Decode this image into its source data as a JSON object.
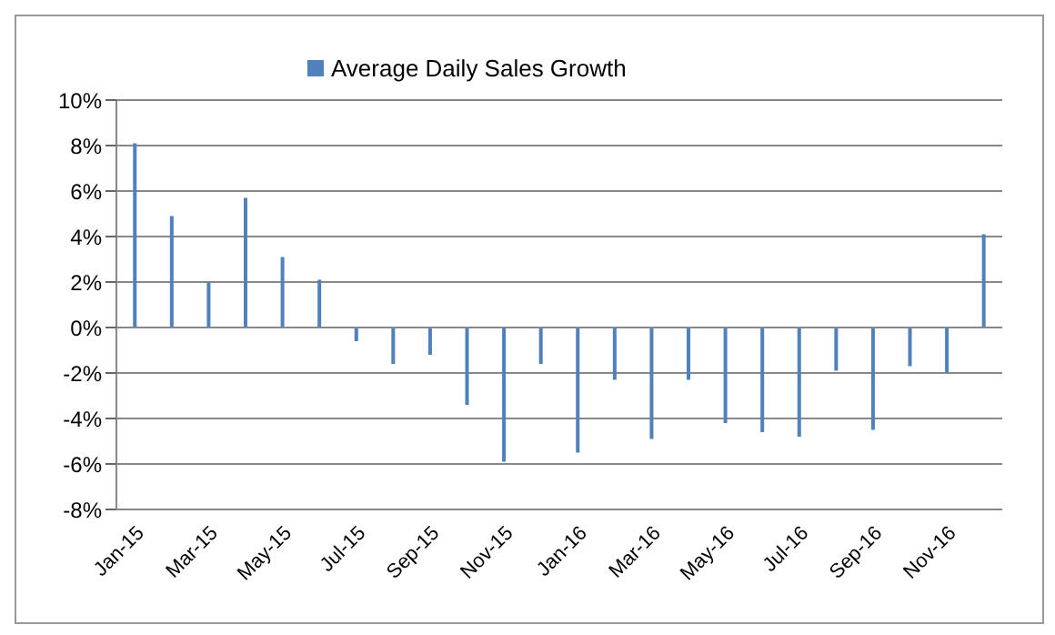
{
  "chart_data": {
    "type": "bar",
    "categories": [
      "Jan-15",
      null,
      "Mar-15",
      null,
      "May-15",
      null,
      "Jul-15",
      null,
      "Sep-15",
      null,
      "Nov-15",
      null,
      "Jan-16",
      null,
      "Mar-16",
      null,
      "May-16",
      null,
      "Jul-16",
      null,
      "Sep-16",
      null,
      "Nov-16",
      null
    ],
    "series": [
      {
        "name": "Average Daily Sales Growth",
        "color": "#4f81bd",
        "values": [
          8.1,
          4.9,
          2.0,
          5.7,
          3.1,
          2.1,
          -0.6,
          -1.6,
          -1.2,
          -3.4,
          -5.9,
          -1.6,
          -5.5,
          -2.3,
          -4.9,
          -2.3,
          -4.2,
          -4.6,
          -4.8,
          -1.9,
          -4.5,
          -1.7,
          -2.0,
          4.1
        ]
      }
    ],
    "ylim": [
      -8,
      10
    ],
    "yticks": [
      {
        "value": -8,
        "label": "-8%"
      },
      {
        "value": -6,
        "label": "-6%"
      },
      {
        "value": -4,
        "label": "-4%"
      },
      {
        "value": -2,
        "label": "-2%"
      },
      {
        "value": 0,
        "label": "0%"
      },
      {
        "value": 2,
        "label": "2%"
      },
      {
        "value": 4,
        "label": "4%"
      },
      {
        "value": 6,
        "label": "6%"
      },
      {
        "value": 8,
        "label": "8%"
      },
      {
        "value": 10,
        "label": "10%"
      }
    ],
    "grid": "y",
    "legend": "top left"
  }
}
